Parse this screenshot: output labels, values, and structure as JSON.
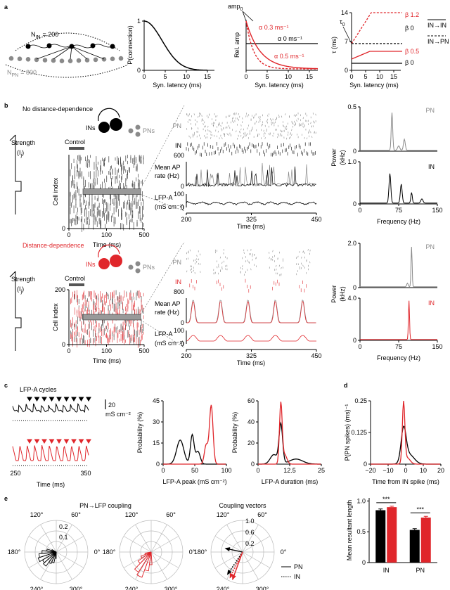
{
  "panel_labels": [
    "a",
    "b",
    "c",
    "d",
    "e"
  ],
  "a": {
    "n_in": {
      "symbol": "N",
      "sub": "IN",
      "value": "= 200"
    },
    "n_pn": {
      "symbol": "N",
      "sub": "PN",
      "value": "= 800"
    },
    "pconn": {
      "ylabel": "P(connection)",
      "yticks": [
        "0",
        "1"
      ],
      "xticks": [
        "0",
        "5",
        "10",
        "15"
      ],
      "xlabel": "Syn. latency (ms)"
    },
    "amp": {
      "amp0": {
        "symbol": "amp",
        "sub": "0"
      },
      "ylabel": "Rel. amp",
      "alphas": [
        "α 0.3 ms⁻¹",
        "α 0 ms⁻¹",
        "α 0.5 ms⁻¹"
      ],
      "xticks": [
        "0",
        "5",
        "10",
        "15"
      ],
      "xlabel": "Syn. latency (ms)"
    },
    "tau": {
      "ylabel": "τ (ms)",
      "tau0": {
        "symbol": "τ",
        "sub": "0"
      },
      "yticks": [
        "0",
        "7",
        "14"
      ],
      "betas": [
        "β 1.2",
        "β 0",
        "β 0.5",
        "β 0"
      ],
      "legend": [
        "IN→IN",
        "IN→PN"
      ],
      "xticks": [
        "0",
        "5",
        "10",
        "15"
      ],
      "xlabel": "Syn. latency (ms)"
    }
  },
  "b": {
    "rows": [
      {
        "title": "No distance-dependence",
        "ins": "INs",
        "pns": "PNs",
        "strength": "Strength",
        "strength_unit": {
          "symbol": "(I",
          "sub": "j",
          "close": ")"
        },
        "control": "Control",
        "raster": {
          "ylabel": "Cell index",
          "yticks": [
            "0"
          ],
          "xticks": [
            "0",
            "100",
            "500"
          ],
          "xlabel": "Time (ms)"
        },
        "zoom": {
          "pn": "PN",
          "in": "IN",
          "count": "600",
          "rate_label": [
            "Mean AP",
            "rate (Hz)"
          ],
          "rate_zero": "0",
          "lfp_label": [
            "LFP-A",
            "(mS cm⁻²)"
          ],
          "lfp_ticks": [
            "100",
            "0"
          ],
          "xticks": [
            "200",
            "325",
            "450"
          ],
          "xlabel": "Time (ms)"
        },
        "power": {
          "ylabel": [
            "Power",
            "(kHz)"
          ],
          "pn": {
            "label": "PN",
            "yticks": [
              "0",
              "0.5"
            ]
          },
          "in": {
            "label": "IN",
            "yticks": [
              "0",
              "1.0"
            ]
          },
          "xticks": [
            "0",
            "75",
            "150"
          ],
          "xlabel": "Frequency (Hz)"
        }
      },
      {
        "title": "Distance-dependence",
        "ins": "INs",
        "pns": "PNs",
        "strength": "Strength",
        "strength_unit": {
          "symbol": "(I",
          "sub": "j",
          "close": ")"
        },
        "control": "Control",
        "raster": {
          "ylabel": "Cell index",
          "yticks": [
            "0",
            "200"
          ],
          "xticks": [
            "0",
            "100",
            "500"
          ],
          "xlabel": "Time (ms)"
        },
        "zoom": {
          "pn": "PN",
          "in": "IN",
          "count": "800",
          "rate_label": [
            "Mean AP",
            "rate (Hz)"
          ],
          "rate_zero": "0",
          "lfp_label": [
            "LFP-A",
            "(mS cm⁻²)"
          ],
          "lfp_ticks": [
            "100",
            "0"
          ],
          "xticks": [
            "200",
            "325",
            "450"
          ],
          "xlabel": "Time (ms)"
        },
        "power": {
          "ylabel": [
            "Power",
            "(kHz)"
          ],
          "pn": {
            "label": "PN",
            "yticks": [
              "0",
              "2.0"
            ]
          },
          "in": {
            "label": "IN",
            "yticks": [
              "0",
              "4.0"
            ]
          },
          "xticks": [
            "0",
            "75",
            "150"
          ],
          "xlabel": "Frequency (Hz)"
        }
      }
    ]
  },
  "c": {
    "cycles": "LFP-A cycles",
    "scale": [
      "20",
      "mS cm⁻²"
    ],
    "xticks": [
      "250",
      "350"
    ],
    "xlabel": "Time (ms)",
    "peak": {
      "ylabel": "Probability (%)",
      "yticks": [
        "0",
        "15",
        "30",
        "45"
      ],
      "xticks": [
        "0",
        "50",
        "100"
      ],
      "xlabel": "LFP-A peak (mS cm⁻²)"
    },
    "duration": {
      "ylabel": "Probability (%)",
      "yticks": [
        "0",
        "20",
        "40",
        "60"
      ],
      "xticks": [
        "0",
        "12.5",
        "25"
      ],
      "xlabel": "LFP-A duration (ms)"
    }
  },
  "d": {
    "ylabel": "P(PN spikes) (ms)⁻¹",
    "yticks": [
      "0",
      "0.125",
      "0.25"
    ],
    "xticks": [
      "−20",
      "−10",
      "0",
      "10",
      "20"
    ],
    "xlabel": "Time from IN spike (ms)"
  },
  "e": {
    "title": "PN→LFP coupling",
    "polar1": {
      "radial": [
        "0.2",
        "0.1"
      ],
      "angles": [
        "120°",
        "60°",
        "180°",
        "0°",
        "240°",
        "300°"
      ]
    },
    "polar2": {
      "angles": [
        "120°",
        "60°",
        "180°",
        "0°",
        "240°",
        "300°"
      ]
    },
    "polar3": {
      "title": "Coupling vectors",
      "radial": [
        "1.0",
        "0.6",
        "0.2"
      ],
      "angles": [
        "120°",
        "60°",
        "180°",
        "0°",
        "240°",
        "300°"
      ],
      "legend": [
        "PN",
        "IN"
      ]
    }
  },
  "chart_data": {
    "type": "bar",
    "ylabel": "Mean resultant length",
    "categories": [
      "IN",
      "PN"
    ],
    "series": [
      {
        "color": "#000000",
        "values": [
          0.85,
          0.53
        ],
        "errors": [
          0.02,
          0.02
        ]
      },
      {
        "color": "#e0262b",
        "values": [
          0.9,
          0.73
        ],
        "errors": [
          0.015,
          0.02
        ]
      }
    ],
    "ylim": [
      0,
      1.05
    ],
    "yticks": [
      0,
      0.5,
      {
        "value": 1,
        "label": "1.0"
      }
    ],
    "annotations": [
      "***",
      "***"
    ]
  }
}
